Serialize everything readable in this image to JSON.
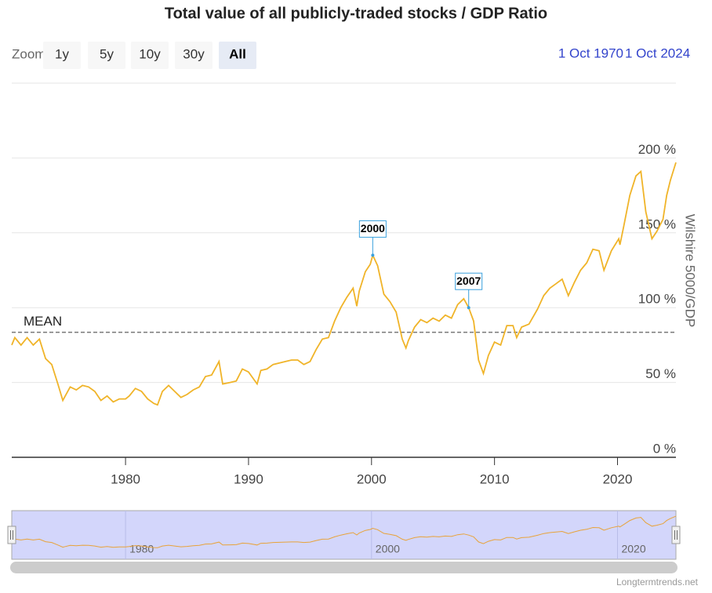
{
  "chart_data": {
    "type": "line",
    "title": "Total value of all publicly-traded stocks / GDP Ratio",
    "y_axis_title": "Wilshire 5000/GDP",
    "range_selector": {
      "label": "Zoom",
      "buttons": [
        "1y",
        "5y",
        "10y",
        "30y",
        "All"
      ],
      "selected": "All"
    },
    "date_from": "1 Oct 1970",
    "date_to": "1 Oct 2024",
    "credit": "Longtermtrends.net",
    "color": "#f0b429",
    "x": [
      1970.75,
      1971.0,
      1971.5,
      1972.0,
      1972.5,
      1973.0,
      1973.5,
      1974.0,
      1974.5,
      1974.9,
      1975.1,
      1975.5,
      1976.0,
      1976.5,
      1977.0,
      1977.5,
      1978.0,
      1978.5,
      1979.0,
      1979.5,
      1980.0,
      1980.3,
      1980.8,
      1981.3,
      1981.8,
      1982.3,
      1982.6,
      1983.0,
      1983.5,
      1984.0,
      1984.5,
      1985.0,
      1985.5,
      1986.0,
      1986.5,
      1987.0,
      1987.6,
      1987.9,
      1988.5,
      1989.0,
      1989.5,
      1990.0,
      1990.7,
      1991.0,
      1991.5,
      1992.0,
      1993.0,
      1993.5,
      1994.0,
      1994.5,
      1995.0,
      1995.5,
      1996.0,
      1996.5,
      1997.0,
      1997.5,
      1998.0,
      1998.5,
      1998.8,
      1999.0,
      1999.5,
      1999.9,
      2000.1,
      2000.5,
      2001.0,
      2001.5,
      2002.0,
      2002.5,
      2002.8,
      2003.0,
      2003.5,
      2004.0,
      2004.5,
      2005.0,
      2005.5,
      2006.0,
      2006.5,
      2007.0,
      2007.5,
      2007.9,
      2008.3,
      2008.7,
      2009.1,
      2009.5,
      2010.0,
      2010.5,
      2011.0,
      2011.5,
      2011.8,
      2012.2,
      2012.8,
      2013.5,
      2014.0,
      2014.5,
      2015.0,
      2015.5,
      2016.0,
      2016.5,
      2017.0,
      2017.5,
      2018.0,
      2018.5,
      2018.9,
      2019.5,
      2020.1,
      2020.2,
      2020.5,
      2021.0,
      2021.5,
      2021.9,
      2022.3,
      2022.8,
      2023.2,
      2023.7,
      2024.0,
      2024.3,
      2024.75
    ],
    "values": [
      75,
      80,
      75,
      80,
      75,
      79,
      66,
      62,
      49,
      38,
      41,
      47,
      45,
      48,
      47,
      44,
      38,
      41,
      37,
      39,
      39,
      41,
      46,
      44,
      39,
      36,
      35,
      44,
      48,
      44,
      40,
      42,
      45,
      47,
      54,
      55,
      64,
      49,
      50,
      51,
      59,
      57,
      49,
      58,
      59,
      62,
      64,
      65,
      65,
      62,
      64,
      72,
      79,
      80,
      91,
      100,
      107,
      113,
      101,
      111,
      124,
      129,
      135,
      128,
      109,
      104,
      97,
      79,
      73,
      78,
      87,
      92,
      90,
      93,
      91,
      95,
      93,
      102,
      106,
      100,
      91,
      65,
      56,
      68,
      77,
      75,
      88,
      88,
      80,
      87,
      89,
      99,
      108,
      113,
      116,
      119,
      108,
      117,
      125,
      130,
      139,
      138,
      125,
      138,
      146,
      142,
      154,
      175,
      188,
      191,
      164,
      146,
      151,
      159,
      175,
      185,
      197
    ],
    "xlim": [
      1970.75,
      2024.75
    ],
    "xticks": [
      1980,
      1990,
      2000,
      2010,
      2020
    ],
    "ylim": [
      0,
      250
    ],
    "yticks": [
      {
        "value": 0,
        "label": "0 %"
      },
      {
        "value": 50,
        "label": "50 %"
      },
      {
        "value": 100,
        "label": "100 %"
      },
      {
        "value": 150,
        "label": "150 %"
      },
      {
        "value": 200,
        "label": "200 %"
      }
    ],
    "grid": true,
    "mean": {
      "label": "MEAN",
      "value": 83.5
    },
    "annotations": [
      {
        "text": "2000",
        "x": 2000.1,
        "y": 135
      },
      {
        "text": "2007",
        "x": 2007.9,
        "y": 100
      }
    ]
  }
}
